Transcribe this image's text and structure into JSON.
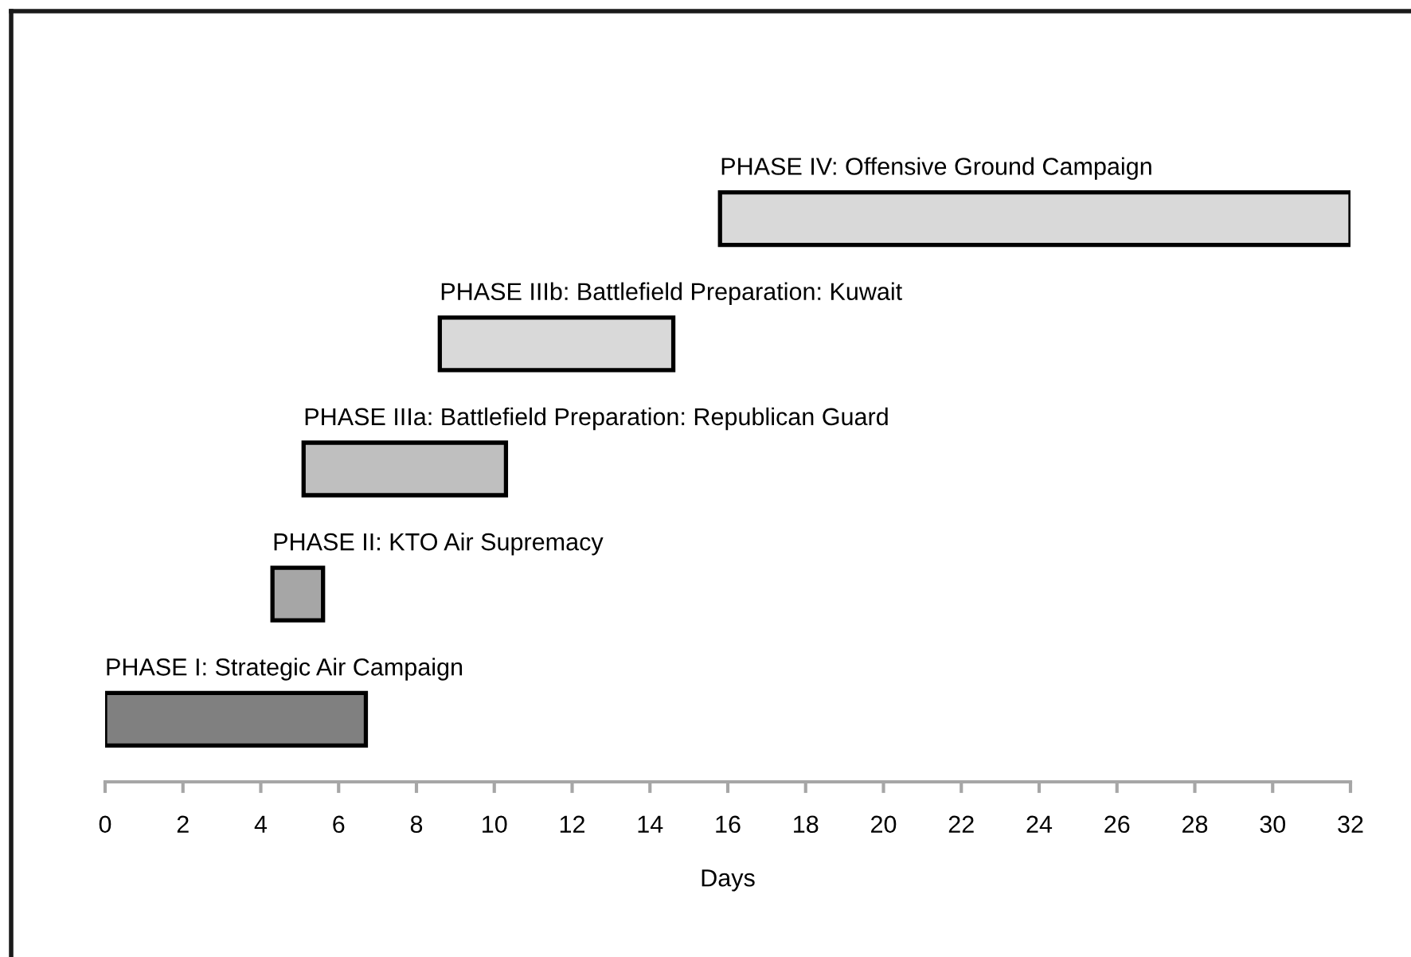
{
  "chart_data": {
    "type": "bar",
    "orientation": "horizontal",
    "categories": [
      "PHASE IV: Offensive Ground Campaign",
      "PHASE IIIb: Battlefield Preparation: Kuwait",
      "PHASE IIIa: Battlefield Preparation: Republican Guard",
      "PHASE II: KTO Air Supremacy",
      "PHASE I: Strategic Air Campaign"
    ],
    "base": [
      15.8,
      8.6,
      5.1,
      4.3,
      0
    ],
    "values": [
      16.2,
      6.0,
      5.2,
      1.3,
      6.7
    ],
    "colors": [
      "#d9d9d9",
      "#d9d9d9",
      "#bfbfbf",
      "#a6a6a6",
      "#808080"
    ],
    "xlabel": "Days",
    "xlim": [
      0,
      32
    ],
    "xticks": [
      0,
      2,
      4,
      6,
      8,
      10,
      12,
      14,
      16,
      18,
      20,
      22,
      24,
      26,
      28,
      30,
      32
    ]
  }
}
